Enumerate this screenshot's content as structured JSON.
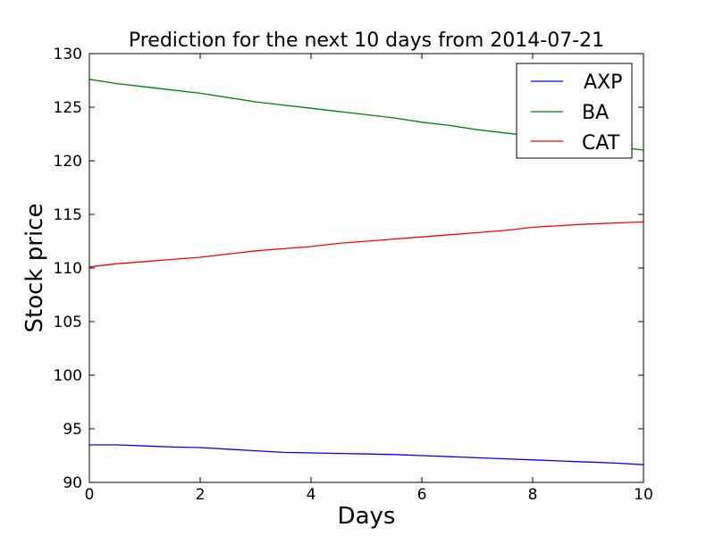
{
  "chart_data": {
    "type": "line",
    "title": "Prediction for the next 10 days from 2014-07-21",
    "xlabel": "Days",
    "ylabel": "Stock price",
    "xlim": [
      0,
      10
    ],
    "ylim": [
      90,
      130
    ],
    "xticks": [
      "0",
      "2",
      "4",
      "6",
      "8",
      "10"
    ],
    "yticks": [
      "90",
      "95",
      "100",
      "105",
      "110",
      "115",
      "120",
      "125",
      "130"
    ],
    "grid": false,
    "legend_position": "top-right",
    "series": [
      {
        "name": "AXP",
        "color": "#0000ff",
        "x": [
          0,
          0.5,
          1,
          1.5,
          2,
          2.5,
          3,
          3.5,
          4,
          4.5,
          5,
          5.5,
          6,
          6.5,
          7,
          7.5,
          8,
          8.5,
          9,
          9.5,
          10
        ],
        "y": [
          93.5,
          93.5,
          93.4,
          93.3,
          93.25,
          93.1,
          92.95,
          92.8,
          92.75,
          92.7,
          92.65,
          92.6,
          92.5,
          92.4,
          92.3,
          92.2,
          92.1,
          92.0,
          91.9,
          91.8,
          91.65
        ]
      },
      {
        "name": "BA",
        "color": "#008000",
        "x": [
          0,
          0.5,
          1,
          1.5,
          2,
          2.5,
          3,
          3.5,
          4,
          4.5,
          5,
          5.5,
          6,
          6.5,
          7,
          7.5,
          8,
          8.5,
          9,
          9.5,
          10
        ],
        "y": [
          127.6,
          127.2,
          126.9,
          126.6,
          126.3,
          125.9,
          125.5,
          125.2,
          124.9,
          124.6,
          124.3,
          124.0,
          123.6,
          123.3,
          122.9,
          122.6,
          122.3,
          122.0,
          121.7,
          121.3,
          121.0
        ]
      },
      {
        "name": "CAT",
        "color": "#ff0000",
        "x": [
          0,
          0.5,
          1,
          1.5,
          2,
          2.5,
          3,
          3.5,
          4,
          4.5,
          5,
          5.5,
          6,
          6.5,
          7,
          7.5,
          8,
          8.5,
          9,
          9.5,
          10
        ],
        "y": [
          110.1,
          110.4,
          110.6,
          110.8,
          111.0,
          111.3,
          111.6,
          111.8,
          112.0,
          112.3,
          112.5,
          112.7,
          112.9,
          113.1,
          113.3,
          113.5,
          113.8,
          113.95,
          114.1,
          114.2,
          114.3
        ]
      }
    ]
  }
}
